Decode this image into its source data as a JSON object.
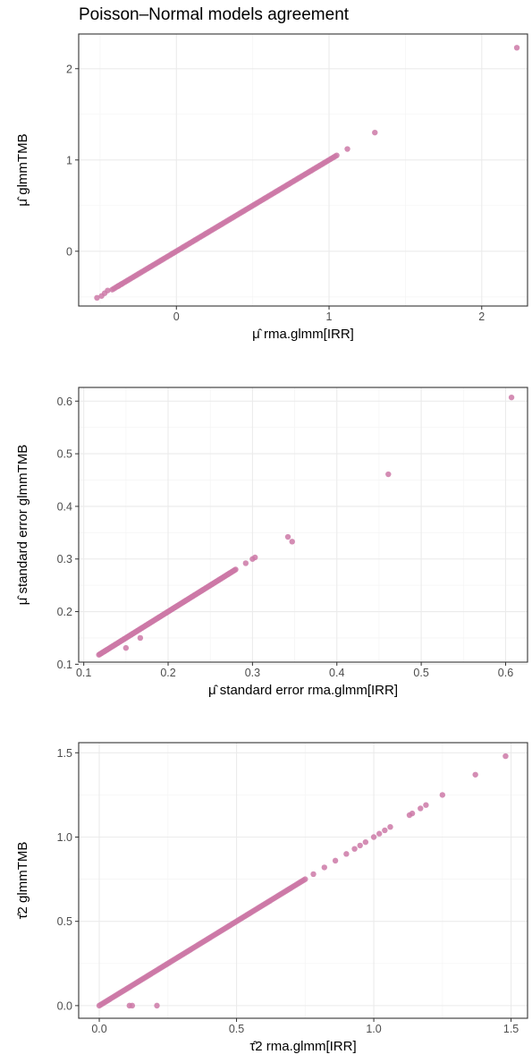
{
  "title": "Poisson–Normal models agreement",
  "style": {
    "point_color": "#cc79a7",
    "grid_major": "#ebebeb",
    "grid_minor": "#f5f5f5",
    "panel_border": "#333333"
  },
  "chart_data": [
    {
      "type": "scatter",
      "title": "Poisson–Normal models agreement",
      "xlabel": "μ̂ rma.glmm[IRR]",
      "ylabel": "μ̂ glmmTMB",
      "xlim": [
        -0.64,
        2.3
      ],
      "ylim": [
        -0.6,
        2.38
      ],
      "xticks": [
        0,
        1,
        2
      ],
      "yticks": [
        0,
        1,
        2
      ],
      "tick_labels_x": [
        "0",
        "1",
        "2"
      ],
      "tick_labels_y": [
        "0",
        "1",
        "2"
      ],
      "grid": true,
      "dense_diagonal": [
        -0.42,
        1.05
      ],
      "points": [
        [
          -0.52,
          -0.51
        ],
        [
          -0.49,
          -0.49
        ],
        [
          -0.47,
          -0.46
        ],
        [
          -0.45,
          -0.43
        ],
        [
          -0.38,
          -0.38
        ],
        [
          -0.36,
          -0.36
        ],
        [
          1.12,
          1.12
        ],
        [
          1.3,
          1.3
        ],
        [
          2.23,
          2.23
        ]
      ]
    },
    {
      "type": "scatter",
      "xlabel": "μ̂ standard error rma.glmm[IRR]",
      "ylabel": "μ̂ standard error glmmTMB",
      "xlim": [
        0.094,
        0.626
      ],
      "ylim": [
        0.104,
        0.626
      ],
      "xticks": [
        0.1,
        0.2,
        0.3,
        0.4,
        0.5,
        0.6
      ],
      "yticks": [
        0.1,
        0.2,
        0.3,
        0.4,
        0.5,
        0.6
      ],
      "tick_labels_x": [
        "0.1",
        "0.2",
        "0.3",
        "0.4",
        "0.5",
        "0.6"
      ],
      "tick_labels_y": [
        "0.1",
        "0.2",
        "0.3",
        "0.4",
        "0.5",
        "0.6"
      ],
      "grid": true,
      "dense_diagonal": [
        0.118,
        0.28
      ],
      "points": [
        [
          0.15,
          0.131
        ],
        [
          0.167,
          0.15
        ],
        [
          0.292,
          0.292
        ],
        [
          0.3,
          0.3
        ],
        [
          0.303,
          0.303
        ],
        [
          0.342,
          0.342
        ],
        [
          0.347,
          0.333
        ],
        [
          0.461,
          0.461
        ],
        [
          0.607,
          0.607
        ]
      ]
    },
    {
      "type": "scatter",
      "xlabel": "τ̂2 rma.glmm[IRR]",
      "ylabel": "τ̂2 glmmTMB",
      "xlim": [
        -0.075,
        1.56
      ],
      "ylim": [
        -0.075,
        1.56
      ],
      "xticks": [
        0,
        0.5,
        1,
        1.5
      ],
      "yticks": [
        0,
        0.5,
        1,
        1.5
      ],
      "tick_labels_x": [
        "0.0",
        "0.5",
        "1.0",
        "1.5"
      ],
      "tick_labels_y": [
        "0.0",
        "0.5",
        "1.0",
        "1.5"
      ],
      "grid": true,
      "dense_diagonal": [
        0.0,
        0.75
      ],
      "points": [
        [
          0.11,
          0.0
        ],
        [
          0.12,
          0.0
        ],
        [
          0.21,
          0.0
        ],
        [
          0.78,
          0.78
        ],
        [
          0.82,
          0.82
        ],
        [
          0.86,
          0.86
        ],
        [
          0.9,
          0.9
        ],
        [
          0.93,
          0.93
        ],
        [
          0.95,
          0.95
        ],
        [
          0.97,
          0.97
        ],
        [
          1.0,
          1.0
        ],
        [
          1.02,
          1.02
        ],
        [
          1.04,
          1.04
        ],
        [
          1.06,
          1.06
        ],
        [
          1.13,
          1.13
        ],
        [
          1.14,
          1.14
        ],
        [
          1.17,
          1.17
        ],
        [
          1.19,
          1.19
        ],
        [
          1.25,
          1.25
        ],
        [
          1.37,
          1.37
        ],
        [
          1.48,
          1.48
        ]
      ]
    }
  ]
}
